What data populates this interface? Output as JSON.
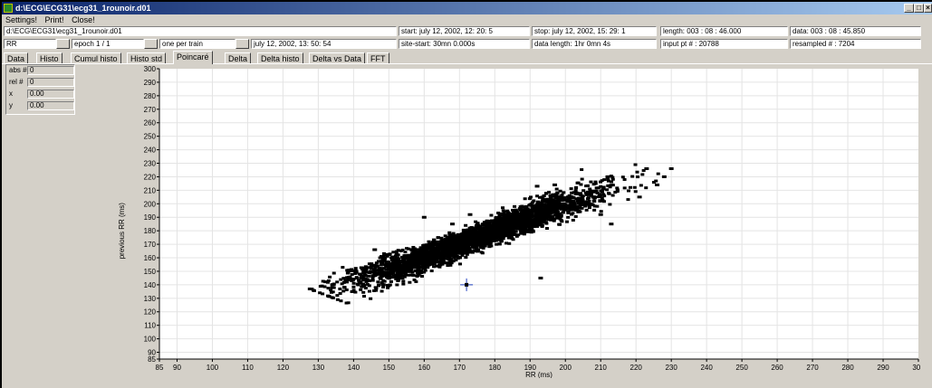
{
  "window": {
    "title": "d:\\ECG\\ECG31\\ecg31_1rounoir.d01",
    "minimize_glyph": "_",
    "maximize_glyph": "□",
    "close_glyph": "×"
  },
  "menu": {
    "settings": "Settings!",
    "print": "Print!",
    "close": "Close!"
  },
  "info_row1": {
    "path": "d:\\ECG\\ECG31\\ecg31_1rounoir.d01",
    "start": "start: july 12, 2002, 12: 20: 5",
    "stop": "stop: july 12, 2002, 15: 29: 1",
    "length": "length: 003 : 08 : 46.000",
    "data": "data: 003 : 08 : 45.850"
  },
  "info_row2": {
    "signal_select": "RR",
    "epoch_select": "epoch 1 / 1",
    "train_select": "one per train",
    "datetime": "july 12, 2002,  13: 50: 54",
    "site_start": "site-start: 30mn 0.000s",
    "data_length": "data length: 1hr 0mn 4s",
    "input_pt": "input pt # : 20788",
    "resampled": "resampled # : 7204"
  },
  "tabs": [
    "Data",
    "Histo",
    "Cumul histo",
    "Histo std",
    "Poincaré",
    "Delta",
    "Delta histo",
    "Delta vs Data",
    "FFT"
  ],
  "active_tab": "Poincaré",
  "readout": {
    "abs_label": "abs #",
    "abs_value": "0",
    "rel_label": "rel #",
    "rel_value": "0",
    "x_label": "x",
    "x_value": "0.00",
    "y_label": "y",
    "y_value": "0.00"
  },
  "colors": {
    "title_start": "#0a246a",
    "title_end": "#a6caf0",
    "points": "#000000",
    "cursor": "#1f3fbf",
    "grid": "#e4e4e4"
  },
  "chart_data": {
    "type": "scatter",
    "xlabel": "RR (ms)",
    "ylabel": "previous RR (ms)",
    "xlim": [
      85,
      300
    ],
    "ylim": [
      85,
      300
    ],
    "x_ticks": [
      85,
      90,
      100,
      110,
      120,
      130,
      140,
      150,
      160,
      170,
      180,
      190,
      200,
      210,
      220,
      230,
      240,
      250,
      260,
      270,
      280,
      290,
      300
    ],
    "y_ticks": [
      85,
      90,
      100,
      110,
      120,
      130,
      140,
      150,
      160,
      170,
      180,
      190,
      200,
      210,
      220,
      230,
      240,
      250,
      260,
      270,
      280,
      290,
      300
    ],
    "grid": true,
    "cluster": {
      "points": 7204,
      "x_range": [
        130,
        228
      ],
      "y_range": [
        130,
        228
      ],
      "center": [
        175,
        175
      ]
    },
    "outliers": [
      [
        173,
        192
      ],
      [
        160,
        190
      ],
      [
        168,
        185
      ],
      [
        186,
        184
      ],
      [
        146,
        166
      ],
      [
        157,
        153
      ],
      [
        193,
        145
      ],
      [
        223,
        226
      ],
      [
        230,
        226
      ],
      [
        228,
        220
      ],
      [
        226,
        214
      ],
      [
        221,
        205
      ],
      [
        210,
        192
      ],
      [
        212,
        220
      ],
      [
        192,
        213
      ],
      [
        197,
        214
      ],
      [
        150,
        147
      ],
      [
        148,
        161
      ],
      [
        213,
        185
      ]
    ],
    "cursor": [
      172,
      140
    ]
  }
}
